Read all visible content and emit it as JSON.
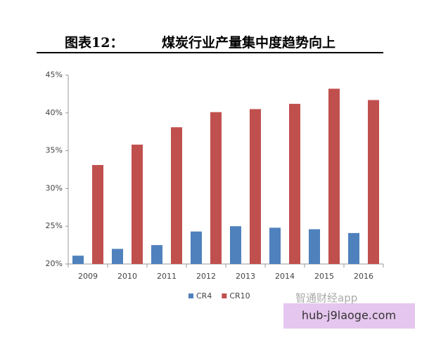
{
  "chart_data": {
    "type": "bar",
    "figure_label": "图表12：",
    "title": "煤炭行业产量集中度趋势向上",
    "categories": [
      "2009",
      "2010",
      "2011",
      "2012",
      "2013",
      "2014",
      "2015",
      "2016"
    ],
    "series": [
      {
        "name": "CR4",
        "color": "#4f81bd",
        "values": [
          21.1,
          22.0,
          22.5,
          24.3,
          25.0,
          24.8,
          24.6,
          24.1
        ]
      },
      {
        "name": "CR10",
        "color": "#c0504d",
        "values": [
          33.1,
          35.8,
          38.1,
          40.1,
          40.5,
          41.2,
          43.2,
          41.7
        ]
      }
    ],
    "ylim": [
      20,
      45
    ],
    "yticks": [
      {
        "value": 20,
        "label": "20%"
      },
      {
        "value": 25,
        "label": "25%"
      },
      {
        "value": 30,
        "label": "30%"
      },
      {
        "value": 35,
        "label": "35%"
      },
      {
        "value": 40,
        "label": "40%"
      },
      {
        "value": 45,
        "label": "45%"
      }
    ],
    "grid": false,
    "legend": "bottom"
  },
  "watermark": {
    "logo": "智通财经app",
    "site": "hub-j9laoge.com"
  }
}
